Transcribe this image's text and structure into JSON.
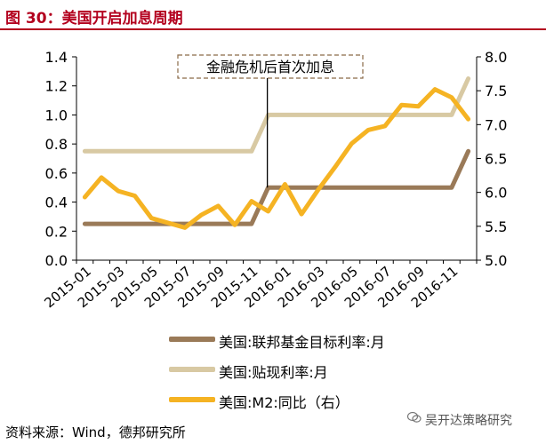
{
  "figure_title": "图 30：美国开启加息周期",
  "source": "资料来源：Wind，德邦研究所",
  "watermark": "吴开达策略研究",
  "colors": {
    "title": "#b3001e",
    "fed_funds": "#9a7a58",
    "discount": "#d8c9a3",
    "m2": "#f5b323"
  },
  "chart_data": {
    "type": "line",
    "x": [
      "2015-01",
      "2015-02",
      "2015-03",
      "2015-04",
      "2015-05",
      "2015-06",
      "2015-07",
      "2015-08",
      "2015-09",
      "2015-10",
      "2015-11",
      "2015-12",
      "2016-01",
      "2016-02",
      "2016-03",
      "2016-04",
      "2016-05",
      "2016-06",
      "2016-07",
      "2016-08",
      "2016-09",
      "2016-10",
      "2016-11",
      "2016-12"
    ],
    "xticks": [
      "2015-01",
      "2015-03",
      "2015-05",
      "2015-07",
      "2015-09",
      "2015-11",
      "2016-01",
      "2016-03",
      "2016-05",
      "2016-07",
      "2016-09",
      "2016-11"
    ],
    "y_left": {
      "range": [
        0.0,
        1.4
      ],
      "ticks": [
        "0.0",
        "0.2",
        "0.4",
        "0.6",
        "0.8",
        "1.0",
        "1.2",
        "1.4"
      ]
    },
    "y_right": {
      "range": [
        5.0,
        8.0
      ],
      "ticks": [
        "5.0",
        "5.5",
        "6.0",
        "6.5",
        "7.0",
        "7.5",
        "8.0"
      ]
    },
    "series": [
      {
        "name": "美国:联邦基金目标利率:月",
        "axis": "left",
        "values": [
          0.25,
          0.25,
          0.25,
          0.25,
          0.25,
          0.25,
          0.25,
          0.25,
          0.25,
          0.25,
          0.25,
          0.5,
          0.5,
          0.5,
          0.5,
          0.5,
          0.5,
          0.5,
          0.5,
          0.5,
          0.5,
          0.5,
          0.5,
          0.75
        ]
      },
      {
        "name": "美国:贴现利率:月",
        "axis": "left",
        "values": [
          0.75,
          0.75,
          0.75,
          0.75,
          0.75,
          0.75,
          0.75,
          0.75,
          0.75,
          0.75,
          0.75,
          1.0,
          1.0,
          1.0,
          1.0,
          1.0,
          1.0,
          1.0,
          1.0,
          1.0,
          1.0,
          1.0,
          1.0,
          1.25
        ]
      },
      {
        "name": "美国:M2:同比（右）",
        "axis": "right",
        "values": [
          5.93,
          6.22,
          6.02,
          5.95,
          5.62,
          5.55,
          5.48,
          5.67,
          5.8,
          5.52,
          5.87,
          5.72,
          6.12,
          5.68,
          6.04,
          6.37,
          6.72,
          6.92,
          6.98,
          7.29,
          7.27,
          7.52,
          7.4,
          7.08
        ]
      }
    ],
    "annotation": "金融危机后首次加息",
    "grid": false,
    "legend_position": "bottom"
  }
}
